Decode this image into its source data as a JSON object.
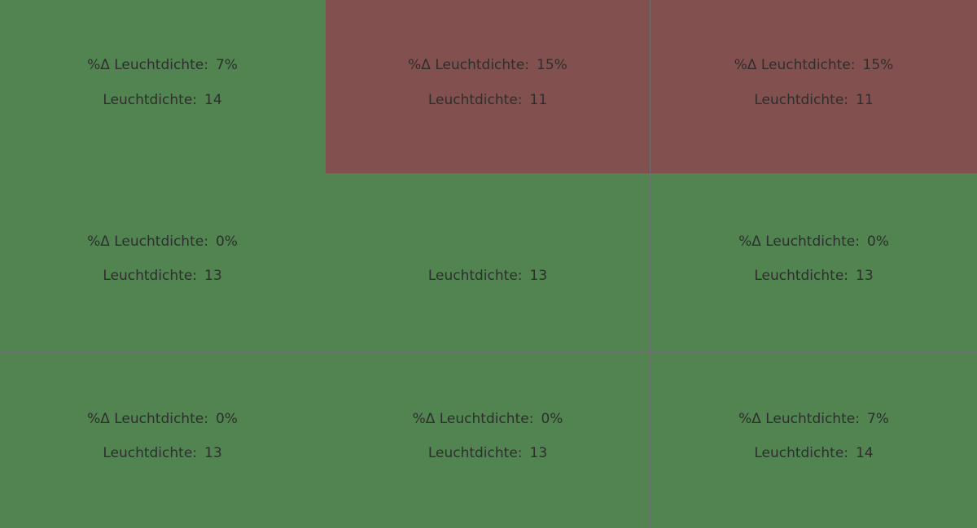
{
  "colors": {
    "ok": "#518450",
    "alert": "#835050",
    "divider": "#6f6f6f",
    "text": "#2e2e2e"
  },
  "labels": {
    "delta": "%Δ Leuchtdichte:",
    "luminance": "Leuchtdichte:"
  },
  "cells": [
    {
      "status": "ok",
      "delta": "7%",
      "luminance": "14"
    },
    {
      "status": "alert",
      "delta": "15%",
      "luminance": "11"
    },
    {
      "status": "alert",
      "delta": "15%",
      "luminance": "11"
    },
    {
      "status": "ok",
      "delta": "0%",
      "luminance": "13"
    },
    {
      "status": "ok",
      "delta": null,
      "luminance": "13"
    },
    {
      "status": "ok",
      "delta": "0%",
      "luminance": "13"
    },
    {
      "status": "ok",
      "delta": "0%",
      "luminance": "13"
    },
    {
      "status": "ok",
      "delta": "0%",
      "luminance": "13"
    },
    {
      "status": "ok",
      "delta": "7%",
      "luminance": "14"
    }
  ]
}
